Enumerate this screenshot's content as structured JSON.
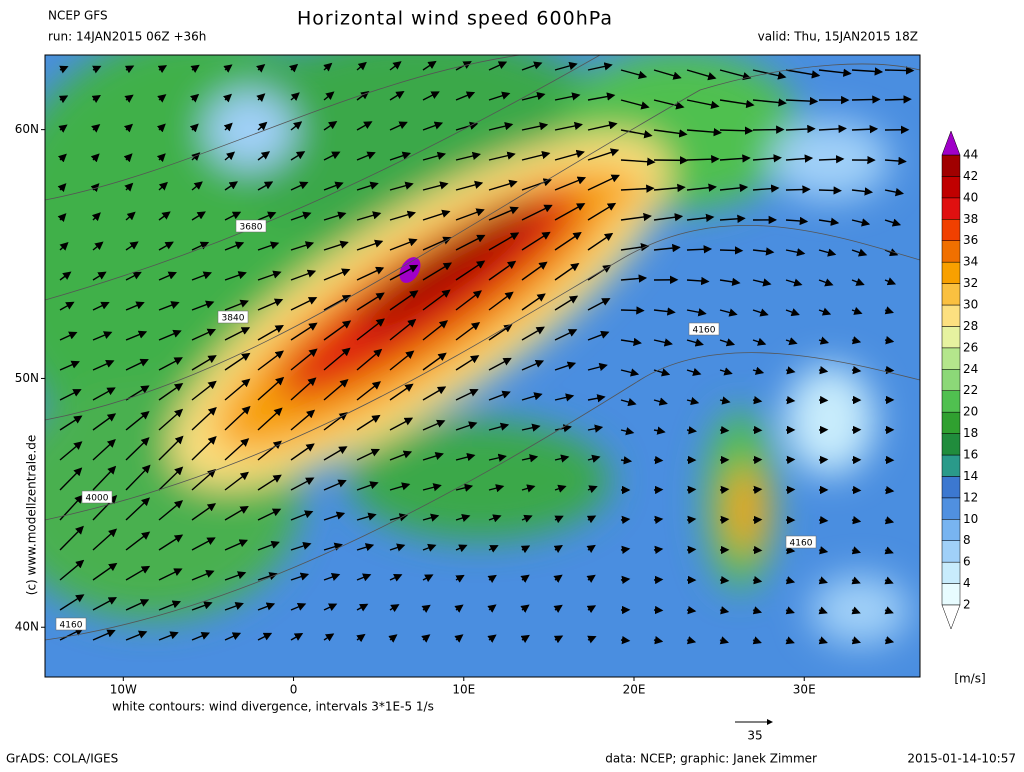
{
  "header": {
    "model": "NCEP GFS",
    "run": "run: 14JAN2015 06Z +36h",
    "title": "Horizontal wind speed 600hPa",
    "valid": "valid: Thu, 15JAN2015 18Z"
  },
  "map": {
    "lon_range": [
      -14.6,
      36.8
    ],
    "lat_range": [
      38,
      63
    ],
    "lat_ticks": [
      {
        "value": 60,
        "label": "60N"
      },
      {
        "value": 50,
        "label": "50N"
      },
      {
        "value": 40,
        "label": "40N"
      }
    ],
    "lon_ticks": [
      {
        "value": -10,
        "label": "10W"
      },
      0,
      {
        "value": 10,
        "label": "10E"
      },
      {
        "value": 20,
        "label": "20E"
      },
      {
        "value": 30,
        "label": "30E"
      }
    ],
    "contour_labels": [
      "3680",
      "3840",
      "4000",
      "4160",
      "4160",
      "4160"
    ],
    "copyright": "(c) www.modellzentrale.de",
    "note": "white contours: wind divergence, intervals 3*1E-5 1/s",
    "reference_vector": "35"
  },
  "colorbar": {
    "levels": [
      2,
      4,
      6,
      8,
      10,
      12,
      14,
      16,
      18,
      20,
      22,
      24,
      26,
      28,
      30,
      32,
      34,
      36,
      38,
      40,
      42,
      44
    ],
    "colors": [
      "#e8fcff",
      "#c8ecfc",
      "#a0d0f8",
      "#78b4f0",
      "#5090e0",
      "#3c78d0",
      "#2a9a8a",
      "#208c3c",
      "#30a030",
      "#50c050",
      "#8cd878",
      "#b4e68c",
      "#e6f2a0",
      "#fce080",
      "#fac040",
      "#f8a000",
      "#f07000",
      "#f04000",
      "#e01010",
      "#c00000",
      "#a00000"
    ],
    "over_color": "#a000c8",
    "under_color": "#ffffff",
    "unit": "[m/s]"
  },
  "footer": {
    "software": "GrADS: COLA/IGES",
    "credit": "data: NCEP; graphic: Janek Zimmer",
    "timestamp": "2015-01-14-10:57"
  }
}
